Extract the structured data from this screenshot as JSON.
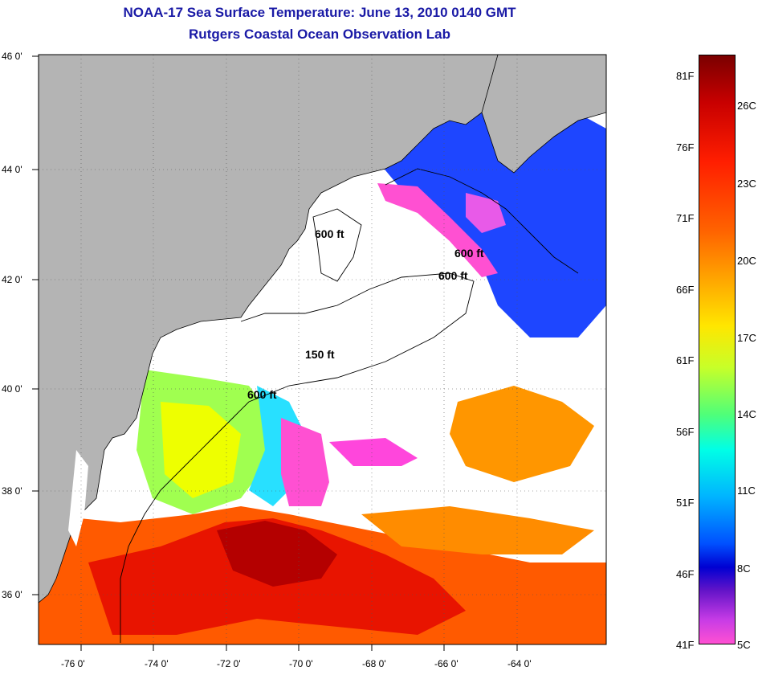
{
  "title": {
    "line1": "NOAA-17 Sea Surface Temperature:  June 13, 2010 0140 GMT",
    "line2": "Rutgers Coastal Ocean Observation Lab"
  },
  "map": {
    "lon_ticks": [
      "-76 0'",
      "-74 0'",
      "-72 0'",
      "-70 0'",
      "-68 0'",
      "-66 0'",
      "-64 0'"
    ],
    "lat_ticks": [
      "46 0'",
      "44 0'",
      "42 0'",
      "40 0'",
      "38 0'",
      "36 0'"
    ],
    "contour_labels": [
      "600 ft",
      "600 ft",
      "600 ft",
      "150 ft",
      "600 ft"
    ]
  },
  "colorbar": {
    "fahrenheit": [
      "81F",
      "76F",
      "71F",
      "66F",
      "61F",
      "56F",
      "51F",
      "46F",
      "41F"
    ],
    "celsius": [
      "26C",
      "23C",
      "20C",
      "17C",
      "14C",
      "11C",
      "8C",
      "5C"
    ]
  },
  "colors": {
    "title": "#1a1aa6",
    "land": "#b4b4b4",
    "cloud": "#ffffff"
  }
}
